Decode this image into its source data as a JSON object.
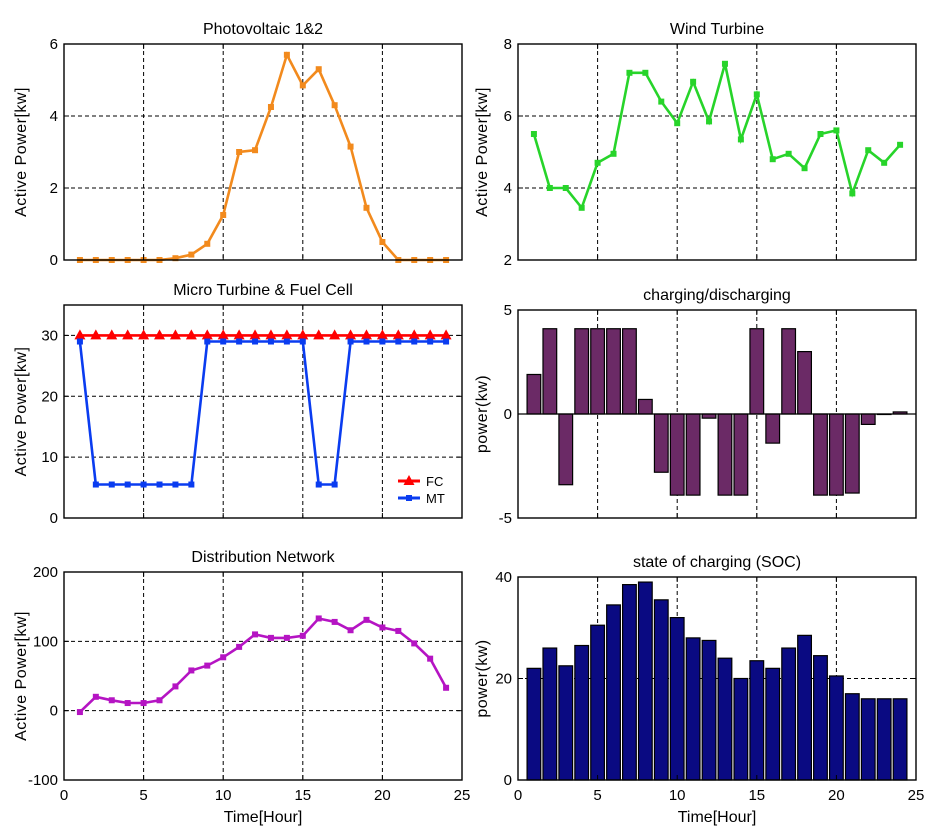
{
  "chart_data": [
    {
      "type": "line",
      "title": "Photovoltaic 1&2",
      "xlabel": "",
      "ylabel": "Active Power[kw]",
      "xlim": [
        0,
        25
      ],
      "ylim": [
        0,
        6
      ],
      "xticks": [
        5,
        10,
        15,
        20,
        25
      ],
      "yticks": [
        0,
        2,
        4,
        6
      ],
      "show_xtick_labels": false,
      "grid": true,
      "series": [
        {
          "color": "#F28A1D",
          "marker": "square",
          "x": [
            1,
            2,
            3,
            4,
            5,
            6,
            7,
            8,
            9,
            10,
            11,
            12,
            13,
            14,
            15,
            16,
            17,
            18,
            19,
            20,
            21,
            22,
            23,
            24
          ],
          "y": [
            0,
            0,
            0,
            0,
            0,
            0,
            0.05,
            0.15,
            0.45,
            1.25,
            3.0,
            3.05,
            4.25,
            5.7,
            4.85,
            5.3,
            4.3,
            3.15,
            1.45,
            0.5,
            0,
            0,
            0,
            0
          ]
        }
      ]
    },
    {
      "type": "line",
      "title": "Wind Turbine",
      "xlabel": "",
      "ylabel": "Active Power[kw]",
      "xlim": [
        0,
        25
      ],
      "ylim": [
        2,
        8
      ],
      "xticks": [
        5,
        10,
        15,
        20,
        25
      ],
      "yticks": [
        2,
        4,
        6,
        8
      ],
      "show_xtick_labels": false,
      "grid": true,
      "series": [
        {
          "color": "#27D42A",
          "marker": "square",
          "x": [
            1,
            2,
            3,
            4,
            5,
            6,
            7,
            8,
            9,
            10,
            11,
            12,
            13,
            14,
            15,
            16,
            17,
            18,
            19,
            20,
            21,
            22,
            23,
            24
          ],
          "y": [
            5.5,
            4.0,
            4.0,
            3.45,
            4.7,
            4.95,
            7.2,
            7.2,
            6.4,
            5.8,
            6.95,
            5.85,
            7.45,
            5.35,
            6.6,
            4.8,
            4.95,
            4.55,
            5.5,
            5.6,
            3.85,
            5.05,
            4.7,
            5.2
          ]
        }
      ]
    },
    {
      "type": "line",
      "title": "Micro Turbine & Fuel Cell",
      "xlabel": "",
      "ylabel": "Active Power[kw]",
      "xlim": [
        0,
        25
      ],
      "ylim": [
        0,
        35
      ],
      "xticks": [
        5,
        10,
        15,
        20,
        25
      ],
      "yticks": [
        0,
        10,
        20,
        30
      ],
      "show_xtick_labels": false,
      "grid": true,
      "legend": "bottom-right",
      "series": [
        {
          "name": "FC",
          "color": "#FF0000",
          "marker": "star",
          "x": [
            1,
            2,
            3,
            4,
            5,
            6,
            7,
            8,
            9,
            10,
            11,
            12,
            13,
            14,
            15,
            16,
            17,
            18,
            19,
            20,
            21,
            22,
            23,
            24
          ],
          "y": [
            30,
            30,
            30,
            30,
            30,
            30,
            30,
            30,
            30,
            30,
            30,
            30,
            30,
            30,
            30,
            30,
            30,
            30,
            30,
            30,
            30,
            30,
            30,
            30
          ]
        },
        {
          "name": "MT",
          "color": "#0A3CF0",
          "marker": "square",
          "x": [
            1,
            2,
            3,
            4,
            5,
            6,
            7,
            8,
            9,
            10,
            11,
            12,
            13,
            14,
            15,
            16,
            17,
            18,
            19,
            20,
            21,
            22,
            23,
            24
          ],
          "y": [
            29,
            5.5,
            5.5,
            5.5,
            5.5,
            5.5,
            5.5,
            5.5,
            29,
            29,
            29,
            29,
            29,
            29,
            29,
            5.5,
            5.5,
            29,
            29,
            29,
            29,
            29,
            29,
            29
          ]
        }
      ]
    },
    {
      "type": "bar",
      "title": "charging/discharging",
      "xlabel": "",
      "ylabel": "power(kw)",
      "xlim": [
        0,
        25
      ],
      "ylim": [
        -5,
        5
      ],
      "xticks": [
        5,
        10,
        15,
        20,
        25
      ],
      "yticks": [
        -5,
        0,
        5
      ],
      "show_xtick_labels": false,
      "grid": true,
      "color": "#6B2A66",
      "x": [
        1,
        2,
        3,
        4,
        5,
        6,
        7,
        8,
        9,
        10,
        11,
        12,
        13,
        14,
        15,
        16,
        17,
        18,
        19,
        20,
        21,
        22,
        23,
        24
      ],
      "values": [
        1.9,
        4.1,
        -3.4,
        4.1,
        4.1,
        4.1,
        4.1,
        0.7,
        -2.8,
        -3.9,
        -3.9,
        -0.2,
        -3.9,
        -3.9,
        4.1,
        -1.4,
        4.1,
        3.0,
        -3.9,
        -3.9,
        -3.8,
        -0.5,
        0,
        0.1
      ]
    },
    {
      "type": "line",
      "title": "Distribution Network",
      "xlabel": "Time[Hour]",
      "ylabel": "Active Power[kw]",
      "xlim": [
        0,
        25
      ],
      "ylim": [
        -100,
        200
      ],
      "xticks": [
        0,
        5,
        10,
        15,
        20,
        25
      ],
      "yticks": [
        -100,
        0,
        100,
        200
      ],
      "show_xtick_labels": true,
      "grid": true,
      "series": [
        {
          "color": "#B514C3",
          "marker": "square",
          "x": [
            1,
            2,
            3,
            4,
            5,
            6,
            7,
            8,
            9,
            10,
            11,
            12,
            13,
            14,
            15,
            16,
            17,
            18,
            19,
            20,
            21,
            22,
            23,
            24
          ],
          "y": [
            -2,
            20,
            15,
            11,
            11,
            15,
            35,
            58,
            65,
            77,
            92,
            110,
            105,
            105,
            108,
            133,
            128,
            116,
            131,
            120,
            115,
            97,
            75,
            33
          ]
        }
      ]
    },
    {
      "type": "bar",
      "title": "state of charging (SOC)",
      "xlabel": "Time[Hour]",
      "ylabel": "power(kw)",
      "xlim": [
        0,
        25
      ],
      "ylim": [
        0,
        40
      ],
      "xticks": [
        0,
        5,
        10,
        15,
        20,
        25
      ],
      "yticks": [
        0,
        20,
        40
      ],
      "show_xtick_labels": true,
      "grid": true,
      "color": "#0A0A82",
      "x": [
        1,
        2,
        3,
        4,
        5,
        6,
        7,
        8,
        9,
        10,
        11,
        12,
        13,
        14,
        15,
        16,
        17,
        18,
        19,
        20,
        21,
        22,
        23,
        24
      ],
      "values": [
        22,
        26,
        22.5,
        26.5,
        30.5,
        34.5,
        38.5,
        39,
        35.5,
        32,
        28,
        27.5,
        24,
        20,
        23.5,
        22,
        26,
        28.5,
        24.5,
        20.5,
        17,
        16,
        16,
        16
      ]
    }
  ]
}
